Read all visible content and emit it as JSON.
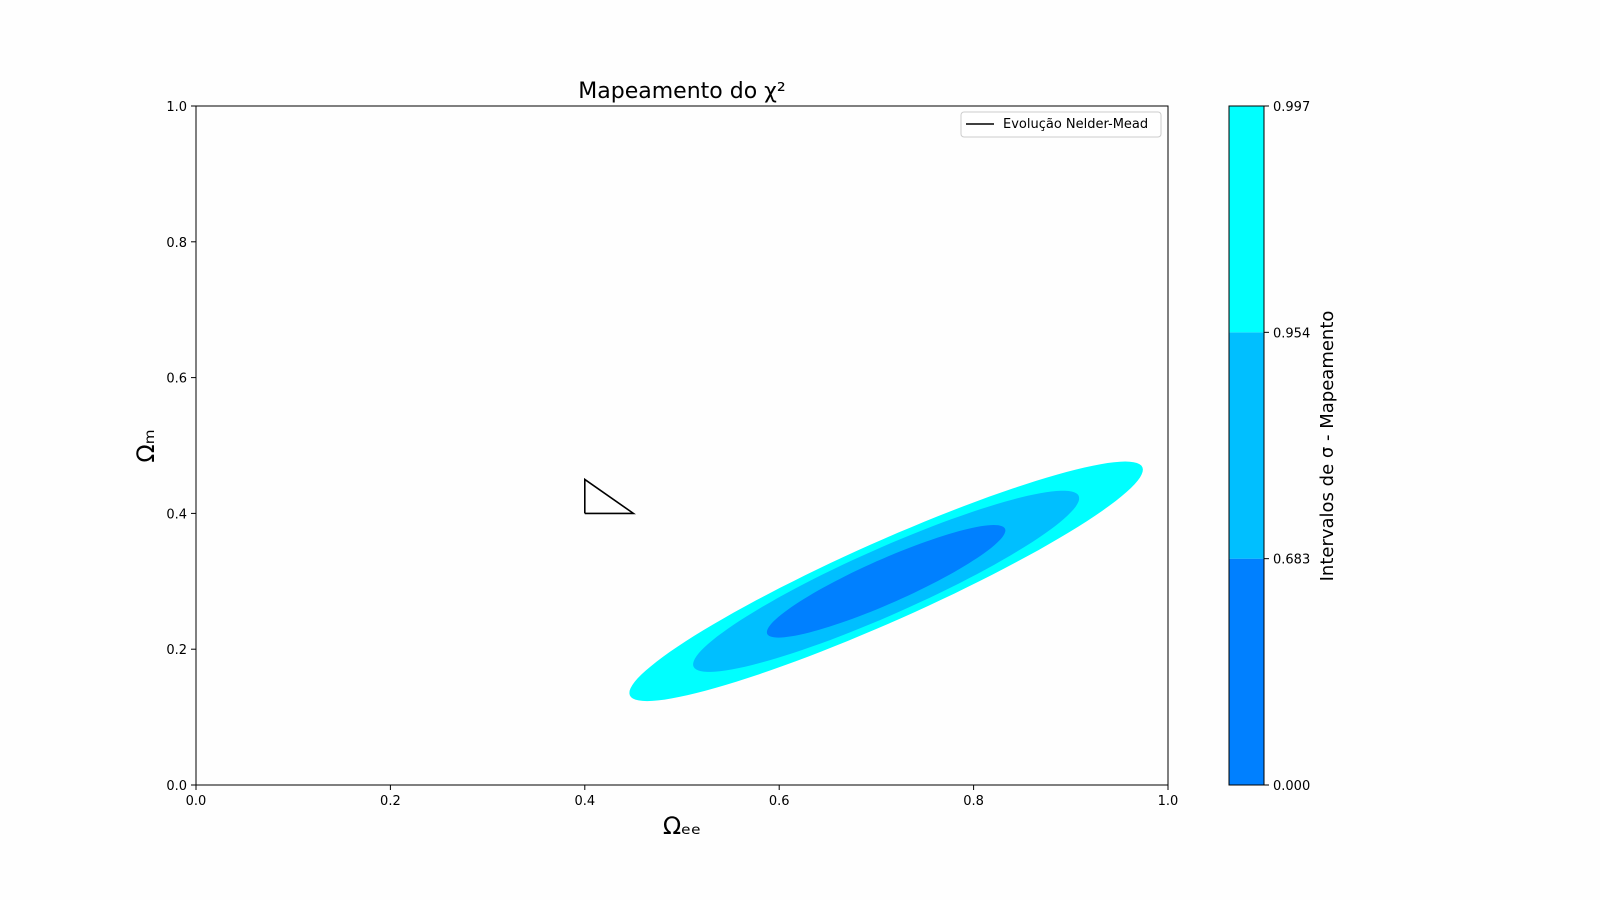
{
  "chart_data": {
    "type": "contour",
    "title": "Mapeamento do χ²",
    "xlabel": "Ωₑₑ",
    "ylabel": "Ωₘ",
    "xlim": [
      0.0,
      1.0
    ],
    "ylim": [
      0.0,
      1.0
    ],
    "x_ticks": [
      "0.0",
      "0.2",
      "0.4",
      "0.6",
      "0.8",
      "1.0"
    ],
    "y_ticks": [
      "0.0",
      "0.2",
      "0.4",
      "0.6",
      "0.8",
      "1.0"
    ],
    "grid": false,
    "legend": {
      "position": "top-right",
      "entries": [
        {
          "label": "Evolução Nelder-Mead",
          "color": "#000000"
        }
      ]
    },
    "contours": {
      "center": [
        0.71,
        0.3
      ],
      "angle_deg": 33,
      "levels": [
        {
          "label": "0.997",
          "color": "#00ffff",
          "semi_major": 0.313,
          "semi_minor": 0.054
        },
        {
          "label": "0.954",
          "color": "#00bfff",
          "semi_major": 0.235,
          "semi_minor": 0.045
        },
        {
          "label": "0.683",
          "color": "#0080ff",
          "semi_major": 0.145,
          "semi_minor": 0.03
        }
      ]
    },
    "simplex": {
      "name": "Evolução Nelder-Mead",
      "color": "#000000",
      "x": [
        0.4,
        0.4,
        0.45,
        0.4
      ],
      "y": [
        0.4,
        0.45,
        0.4,
        0.4
      ]
    },
    "colorbar": {
      "label": "Intervalos de σ - Mapeamento",
      "ticks": [
        "0.000",
        "0.683",
        "0.954",
        "0.997"
      ],
      "colors": [
        "#0080ff",
        "#00bfff",
        "#00ffff"
      ]
    }
  }
}
